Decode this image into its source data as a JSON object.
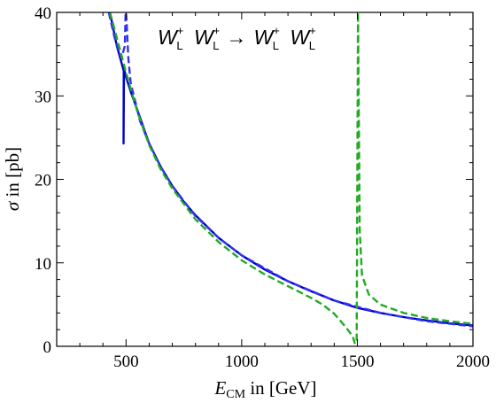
{
  "chart_data": {
    "type": "line",
    "title": "",
    "annotation": {
      "in1": "W",
      "in1_sub": "L",
      "in1_sup": "+",
      "in2": "W",
      "in2_sub": "L",
      "in2_sup": "+",
      "arrow": "→",
      "out1": "W",
      "out1_sub": "L",
      "out1_sup": "+",
      "out2": "W",
      "out2_sub": "L",
      "out2_sup": "+"
    },
    "xlabel": {
      "main": "E",
      "sub": "CM",
      "rest": " in [GeV]"
    },
    "ylabel": {
      "main": "σ",
      "rest": " in [pb]"
    },
    "xlim": [
      200,
      2000
    ],
    "ylim": [
      0,
      40
    ],
    "xticks": [
      500,
      1000,
      1500,
      2000
    ],
    "xtick_labels": [
      "500",
      "1000",
      "1500",
      "2000"
    ],
    "yticks": [
      0,
      10,
      20,
      30,
      40
    ],
    "ytick_labels": [
      "0",
      "10",
      "20",
      "30",
      "40"
    ],
    "grid": false,
    "legend": "none",
    "series": [
      {
        "color": "#0000cc",
        "style": "solid",
        "x": [
          430,
          460,
          490,
          489,
          491,
          500,
          520,
          550,
          600,
          650,
          700,
          750,
          800,
          900,
          1000,
          1100,
          1200,
          1300,
          1400,
          1500,
          1600,
          1700,
          1800,
          1900,
          2000
        ],
        "y": [
          40,
          36,
          33,
          24.3,
          33.2,
          32.3,
          30.5,
          28.2,
          24.3,
          21.5,
          19.2,
          17.3,
          15.7,
          13.0,
          10.9,
          9.2,
          7.8,
          6.6,
          5.5,
          4.6,
          4.0,
          3.5,
          3.1,
          2.75,
          2.5
        ]
      },
      {
        "color": "#3333ee",
        "style": "dashed",
        "x": [
          425,
          450,
          480,
          495,
          498,
          500,
          503,
          510,
          520,
          540,
          560,
          600,
          650,
          700,
          800,
          900,
          1000,
          1200,
          1400,
          1600,
          1800,
          2000
        ],
        "y": [
          40,
          37,
          34.5,
          36,
          40,
          40,
          38.5,
          34.5,
          31.5,
          29.3,
          27.0,
          24.3,
          21.5,
          19.2,
          15.6,
          13.0,
          10.9,
          7.8,
          5.5,
          4.0,
          3.0,
          2.4
        ]
      },
      {
        "color": "#22aa22",
        "style": "dashed",
        "x": [
          430,
          450,
          500,
          550,
          600,
          650,
          700,
          800,
          900,
          1000,
          1100,
          1200,
          1300,
          1350,
          1400,
          1450,
          1480,
          1490,
          1497,
          1503,
          1510,
          1520,
          1550,
          1600,
          1700,
          1800,
          1900,
          2000
        ],
        "y": [
          40,
          38,
          32.8,
          28.0,
          24.1,
          21.2,
          18.9,
          15.2,
          12.5,
          10.3,
          8.6,
          7.2,
          5.8,
          5.0,
          3.9,
          2.3,
          1.2,
          0.3,
          0.8,
          40,
          14,
          8.5,
          6.2,
          5.0,
          4.0,
          3.4,
          3.0,
          2.7
        ]
      }
    ]
  }
}
